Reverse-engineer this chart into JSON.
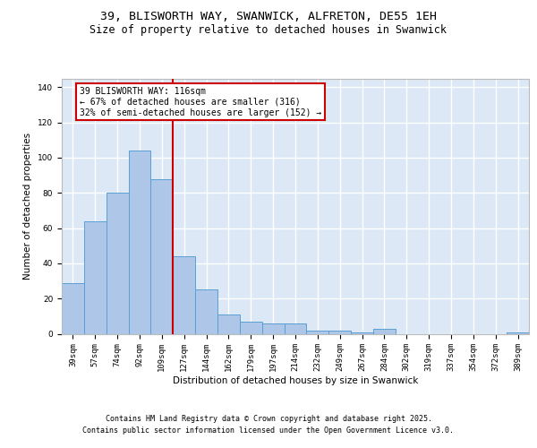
{
  "title": "39, BLISWORTH WAY, SWANWICK, ALFRETON, DE55 1EH",
  "subtitle": "Size of property relative to detached houses in Swanwick",
  "xlabel": "Distribution of detached houses by size in Swanwick",
  "ylabel": "Number of detached properties",
  "categories": [
    "39sqm",
    "57sqm",
    "74sqm",
    "92sqm",
    "109sqm",
    "127sqm",
    "144sqm",
    "162sqm",
    "179sqm",
    "197sqm",
    "214sqm",
    "232sqm",
    "249sqm",
    "267sqm",
    "284sqm",
    "302sqm",
    "319sqm",
    "337sqm",
    "354sqm",
    "372sqm",
    "389sqm"
  ],
  "values": [
    29,
    64,
    80,
    104,
    88,
    44,
    25,
    11,
    7,
    6,
    6,
    2,
    2,
    1,
    3,
    0,
    0,
    0,
    0,
    0,
    1
  ],
  "bar_color": "#aec6e8",
  "bar_edge_color": "#5a9fd4",
  "background_color": "#dce8f5",
  "grid_color": "#ffffff",
  "vline_x": 4.5,
  "vline_color": "#cc0000",
  "annotation_text": "39 BLISWORTH WAY: 116sqm\n← 67% of detached houses are smaller (316)\n32% of semi-detached houses are larger (152) →",
  "annotation_box_color": "#ffffff",
  "annotation_box_edge": "#cc0000",
  "ylim": [
    0,
    145
  ],
  "yticks": [
    0,
    20,
    40,
    60,
    80,
    100,
    120,
    140
  ],
  "footer_line1": "Contains HM Land Registry data © Crown copyright and database right 2025.",
  "footer_line2": "Contains public sector information licensed under the Open Government Licence v3.0.",
  "title_fontsize": 9.5,
  "subtitle_fontsize": 8.5,
  "label_fontsize": 7.5,
  "tick_fontsize": 6.5,
  "annotation_fontsize": 7,
  "footer_fontsize": 6
}
